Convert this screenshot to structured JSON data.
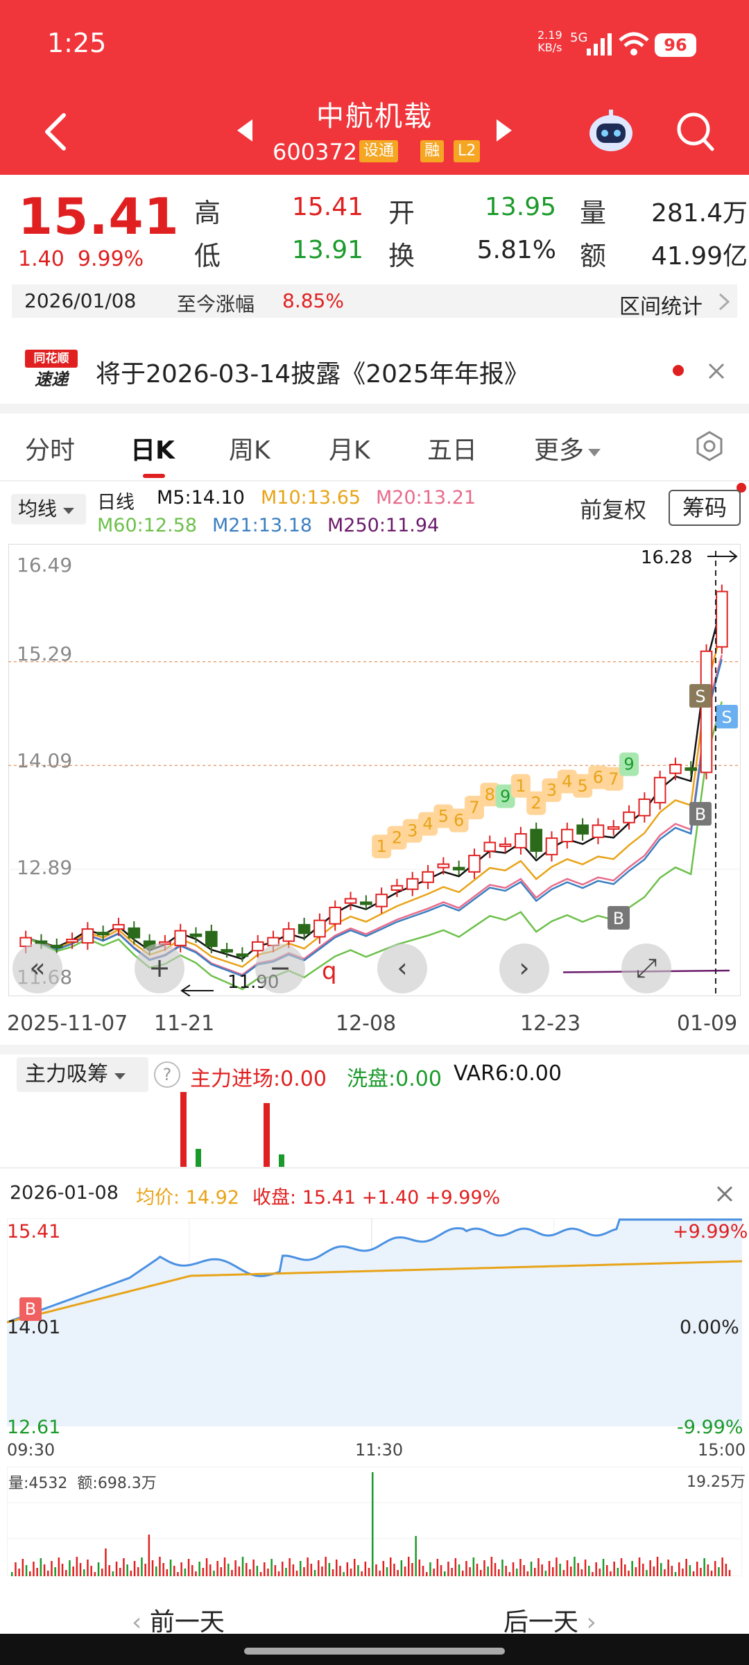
{
  "status": {
    "time": "1:25",
    "net_speed": "2.19\nKB/s",
    "network": "5G",
    "battery": "96"
  },
  "header": {
    "name": "中航机载",
    "code": "600372",
    "tags": [
      "设通",
      "融",
      "L2"
    ]
  },
  "quote": {
    "price": "15.41",
    "change": "1.40",
    "change_pct": "9.99%",
    "high_label": "高",
    "high": "15.41",
    "low_label": "低",
    "low": "13.91",
    "open_label": "开",
    "open": "13.95",
    "turnover_label": "换",
    "turnover": "5.81%",
    "volume_label": "量",
    "volume": "281.4万",
    "amount_label": "额",
    "amount": "41.99亿"
  },
  "range": {
    "date": "2026/01/08",
    "label": "至今涨幅",
    "value": "8.85%",
    "stats_label": "区间统计"
  },
  "notice": {
    "logo_top": "同花顺",
    "logo_bottom": "速递",
    "text": "将于2026-03-14披露《2025年年报》"
  },
  "tabs": [
    "分时",
    "日K",
    "周K",
    "月K",
    "五日",
    "更多"
  ],
  "ma": {
    "selector": "均线",
    "kind": "日线",
    "m5": "M5:14.10",
    "m10": "M10:13.65",
    "m20": "M20:13.21",
    "m60": "M60:12.58",
    "m21": "M21:13.18",
    "m250": "M250:11.94",
    "adjust": "前复权",
    "chips": "筹码"
  },
  "colors": {
    "m5": "#111111",
    "m10": "#e8a317",
    "m20": "#e86a8a",
    "m60": "#6cc04a",
    "m21": "#3a7fc0",
    "m250": "#6a1a6a",
    "up": "#e02020",
    "down": "#2a6a1a"
  },
  "chart_data": {
    "type": "candlestick",
    "y_ticks": [
      "16.49",
      "15.29",
      "14.09",
      "12.89",
      "11.68"
    ],
    "ylim": [
      11.68,
      16.49
    ],
    "x_labels": [
      "2025-11-07",
      "11-21",
      "12-08",
      "12-23",
      "01-09"
    ],
    "high_marker": "16.28",
    "low_marker": "11.90",
    "signal_labels": [
      "1",
      "2",
      "3",
      "4",
      "5",
      "6",
      "7",
      "8",
      "9",
      "1",
      "2",
      "3",
      "4",
      "5",
      "6",
      "7",
      "9"
    ],
    "buy_label": "B",
    "sell_label": "S"
  },
  "indicator": {
    "name": "主力吸筹",
    "help": "?",
    "main": "主力进场:0.00",
    "wash": "洗盘:0.00",
    "var6": "VAR6:0.00"
  },
  "popup": {
    "date": "2026-01-08",
    "avg_label": "均价:",
    "avg": "14.92",
    "close_label": "收盘:",
    "close": "15.41 +1.40 +9.99%",
    "y_top": "15.41",
    "y_mid": "14.01",
    "y_bot": "12.61",
    "pct_top": "+9.99%",
    "pct_mid": "0.00%",
    "pct_bot": "-9.99%",
    "t_start": "09:30",
    "t_mid": "11:30",
    "t_end": "15:00",
    "buy": "B",
    "vol_label": "量:4532",
    "amt_label": "额:698.3万",
    "vol_max": "19.25万"
  },
  "nav": {
    "prev": "前一天",
    "next": "后一天"
  }
}
